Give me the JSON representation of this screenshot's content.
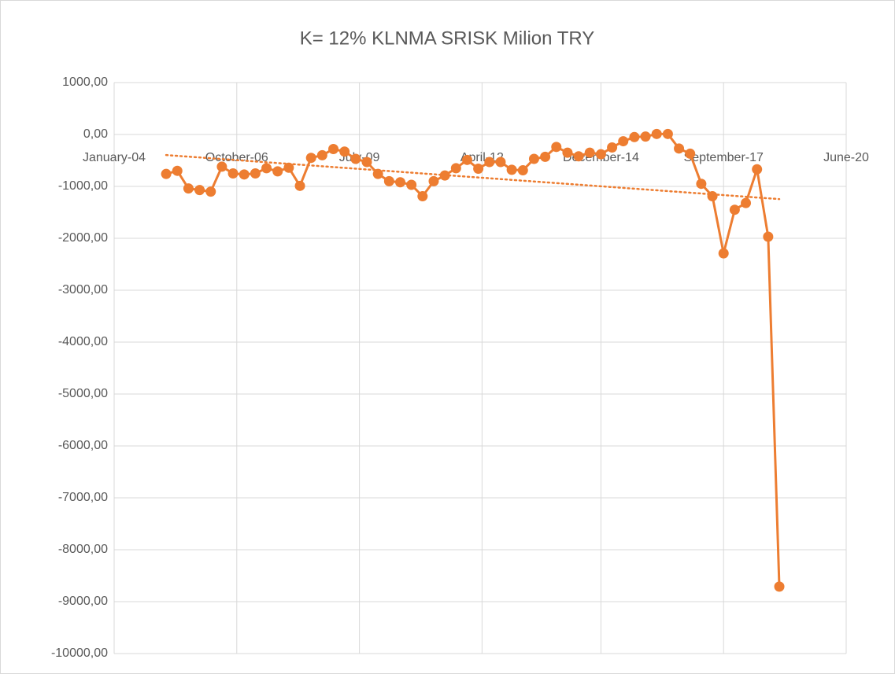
{
  "chart_data": {
    "type": "line",
    "title": "K= 12%  KLNMA SRISK Milion TRY",
    "x": [
      "2005-03",
      "2005-06",
      "2005-09",
      "2005-12",
      "2006-03",
      "2006-06",
      "2006-09",
      "2006-12",
      "2007-03",
      "2007-06",
      "2007-09",
      "2007-12",
      "2008-03",
      "2008-06",
      "2008-09",
      "2008-12",
      "2009-03",
      "2009-06",
      "2009-09",
      "2009-12",
      "2010-03",
      "2010-06",
      "2010-09",
      "2010-12",
      "2011-03",
      "2011-06",
      "2011-09",
      "2011-12",
      "2012-03",
      "2012-06",
      "2012-09",
      "2012-12",
      "2013-03",
      "2013-06",
      "2013-09",
      "2013-12",
      "2014-03",
      "2014-06",
      "2014-09",
      "2014-12",
      "2015-03",
      "2015-06",
      "2015-09",
      "2015-12",
      "2016-03",
      "2016-06",
      "2016-09",
      "2016-12",
      "2017-03",
      "2017-06",
      "2017-09",
      "2017-12",
      "2018-03",
      "2018-06",
      "2018-09",
      "2018-12"
    ],
    "series": [
      {
        "name": "KLNMA SRISK",
        "color": "#ED7D31",
        "trendline": "linear",
        "values": [
          -760,
          -700,
          -1040,
          -1070,
          -1100,
          -620,
          -750,
          -770,
          -750,
          -650,
          -710,
          -640,
          -990,
          -450,
          -400,
          -280,
          -330,
          -470,
          -530,
          -760,
          -900,
          -920,
          -970,
          -1190,
          -900,
          -790,
          -650,
          -490,
          -660,
          -530,
          -530,
          -680,
          -690,
          -470,
          -430,
          -240,
          -350,
          -420,
          -350,
          -380,
          -250,
          -130,
          -50,
          -40,
          10,
          10,
          -270,
          -370,
          -950,
          -1190,
          -2290,
          -1450,
          -1320,
          -670,
          -1970,
          -8710
        ]
      }
    ],
    "xlim": [
      "2004-01",
      "2020-06"
    ],
    "xticks": [
      {
        "value": "2004-01",
        "label": "January-04"
      },
      {
        "value": "2006-10",
        "label": "October-06"
      },
      {
        "value": "2009-07",
        "label": "July-09"
      },
      {
        "value": "2012-04",
        "label": "April-12"
      },
      {
        "value": "2014-12",
        "label": "December-14"
      },
      {
        "value": "2017-09",
        "label": "September-17"
      },
      {
        "value": "2020-06",
        "label": "June-20"
      }
    ],
    "ylim": [
      -10000,
      1000
    ],
    "yticks": [
      {
        "value": 1000,
        "label": "1000,00"
      },
      {
        "value": 0,
        "label": "0,00"
      },
      {
        "value": -1000,
        "label": "-1000,00"
      },
      {
        "value": -2000,
        "label": "-2000,00"
      },
      {
        "value": -3000,
        "label": "-3000,00"
      },
      {
        "value": -4000,
        "label": "-4000,00"
      },
      {
        "value": -5000,
        "label": "-5000,00"
      },
      {
        "value": -6000,
        "label": "-6000,00"
      },
      {
        "value": -7000,
        "label": "-7000,00"
      },
      {
        "value": -8000,
        "label": "-8000,00"
      },
      {
        "value": -9000,
        "label": "-9000,00"
      },
      {
        "value": -10000,
        "label": "-10000,00"
      }
    ],
    "grid": true
  }
}
